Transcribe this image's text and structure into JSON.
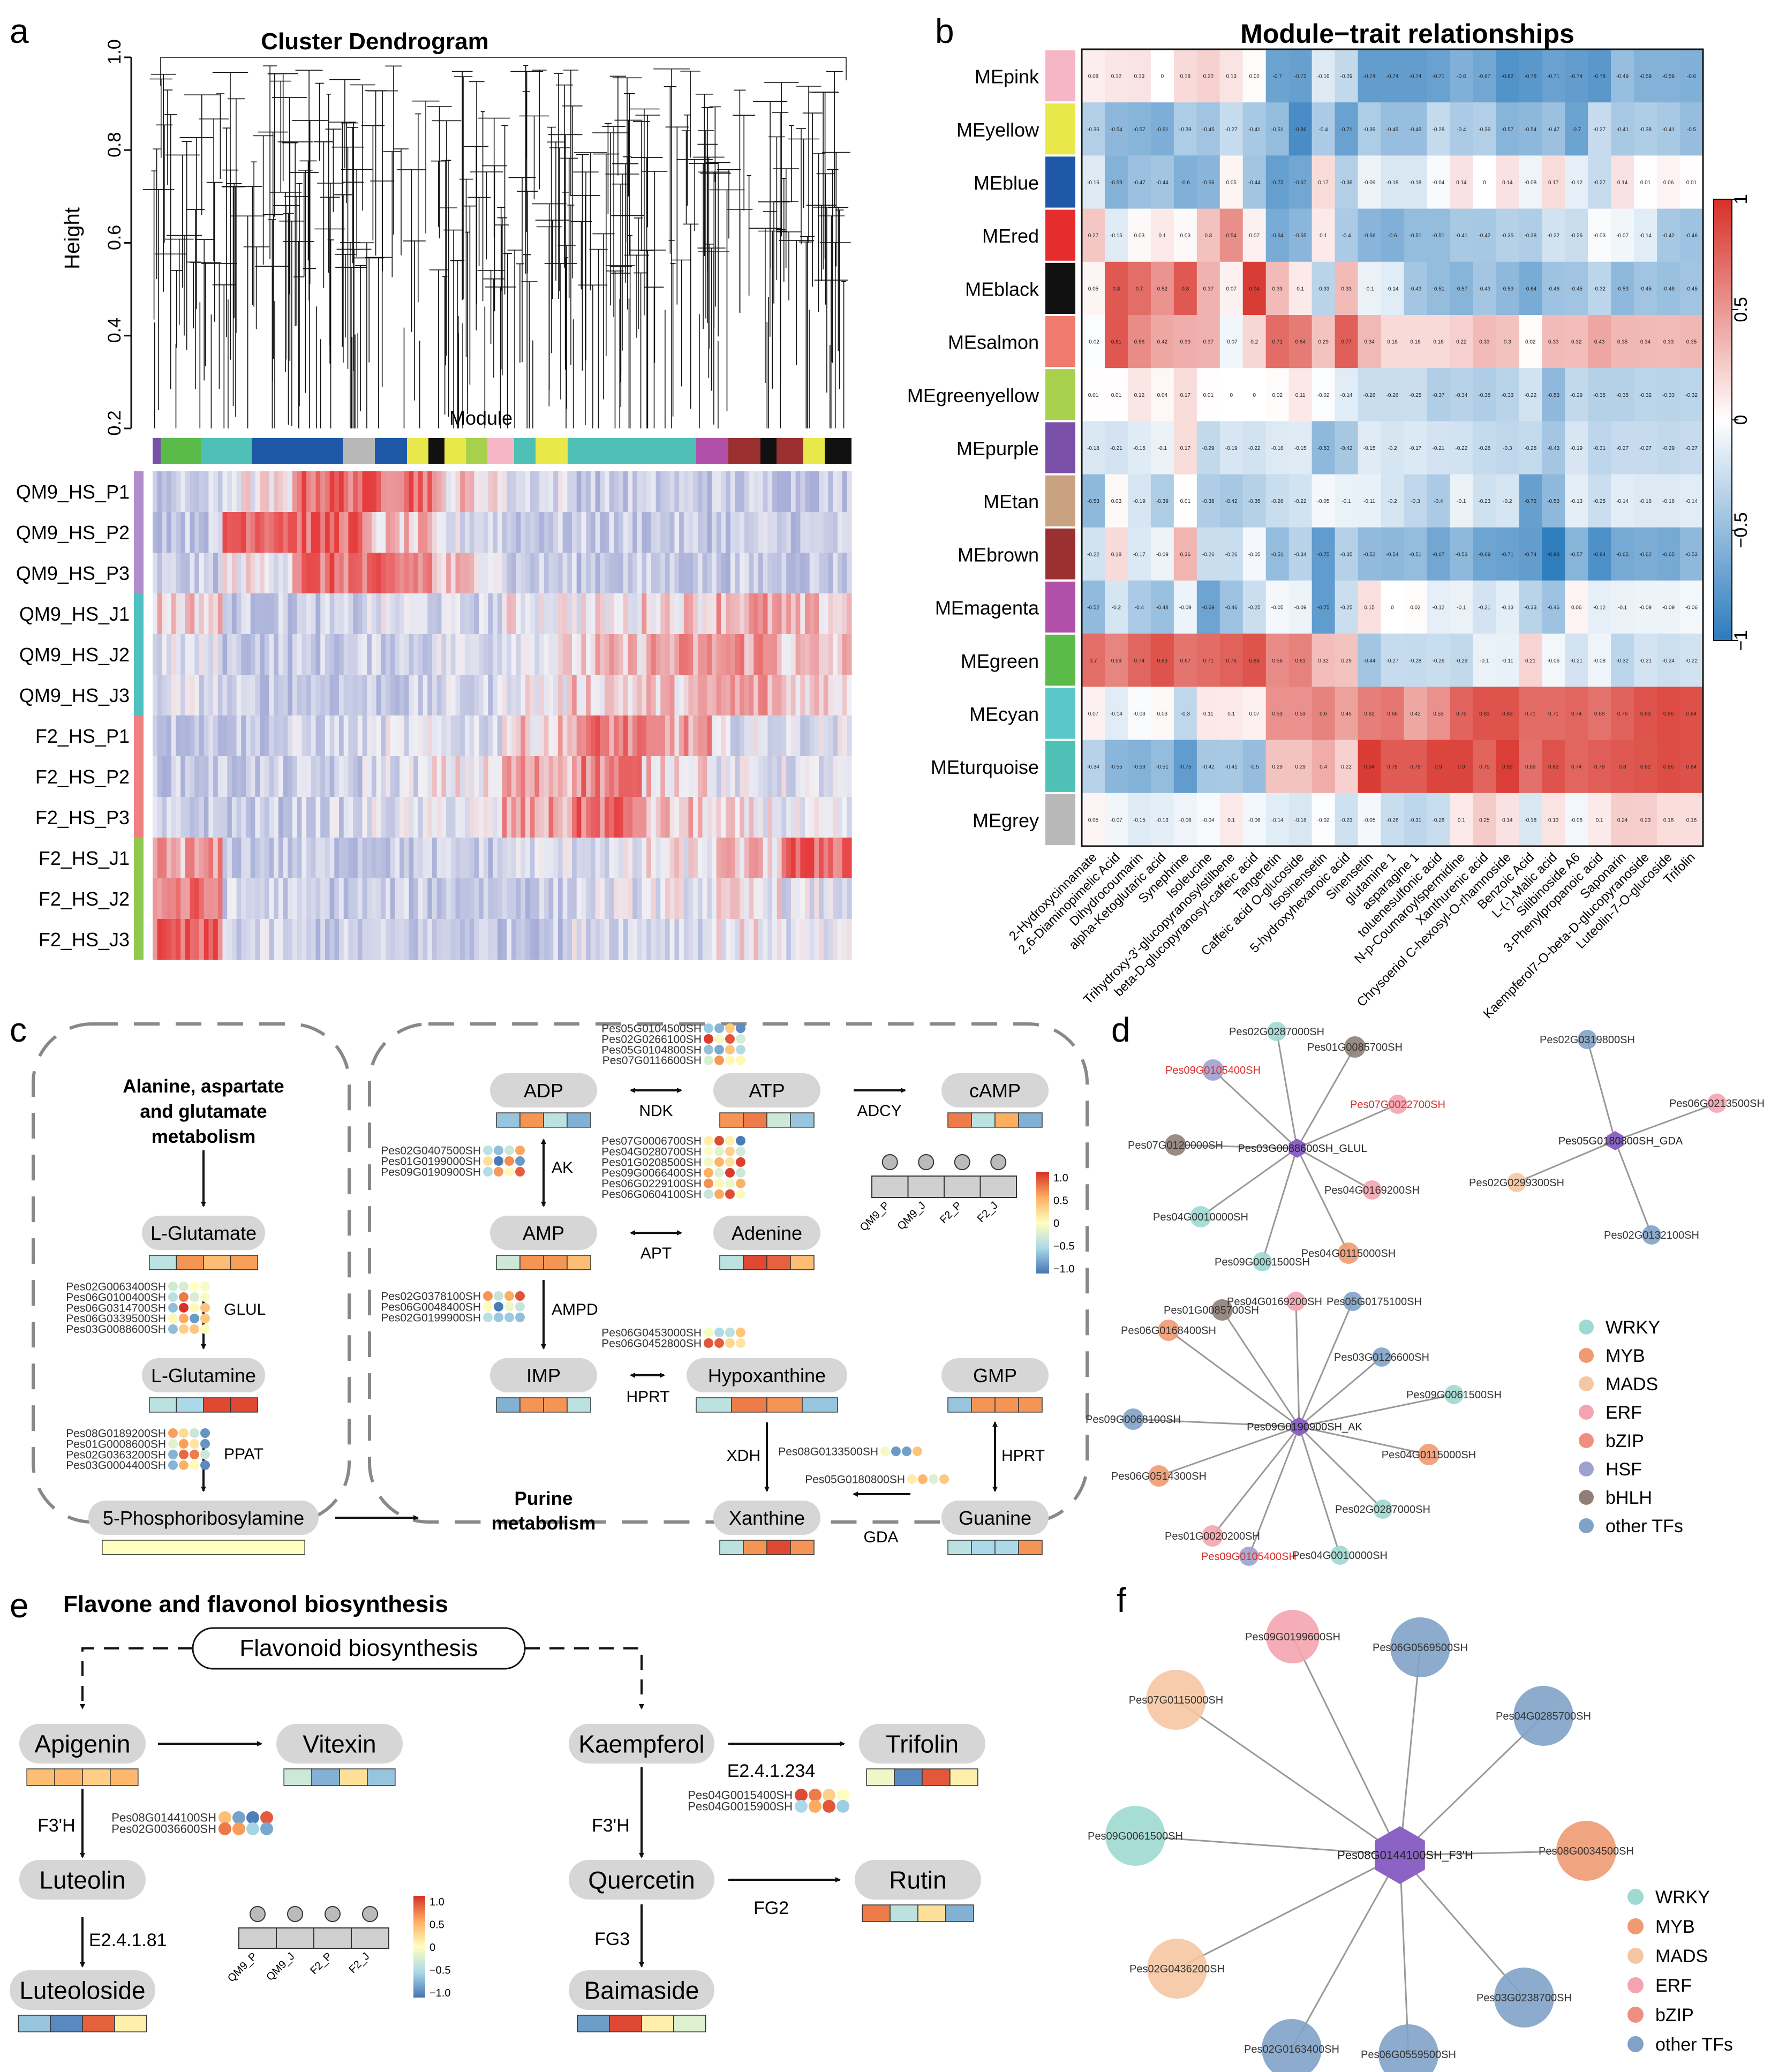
{
  "panels": {
    "a": {
      "label": "a",
      "title": "Cluster Dendrogram",
      "yaxis_label": "Height",
      "yticks": [
        "0.2",
        "0.4",
        "0.6",
        "0.8",
        "1.0"
      ],
      "module_label": "Module",
      "samples": [
        "QM9_HS_P1",
        "QM9_HS_P2",
        "QM9_HS_P3",
        "QM9_HS_J1",
        "QM9_HS_J2",
        "QM9_HS_J3",
        "F2_HS_P1",
        "F2_HS_P2",
        "F2_HS_P3",
        "F2_HS_J1",
        "F2_HS_J2",
        "F2_HS_J3"
      ],
      "sample_group_colors": [
        "#b28ccc",
        "#b28ccc",
        "#b28ccc",
        "#4ec0c0",
        "#4ec0c0",
        "#4ec0c0",
        "#f08080",
        "#f08080",
        "#f08080",
        "#8fca4e",
        "#8fca4e",
        "#8fca4e"
      ]
    },
    "b": {
      "label": "b",
      "title": "Module−trait relationships",
      "modules": [
        "MEpink",
        "MEyellow",
        "MEblue",
        "MEred",
        "MEblack",
        "MEsalmon",
        "MEgreenyellow",
        "MEpurple",
        "MEtan",
        "MEbrown",
        "MEmagenta",
        "MEgreen",
        "MEcyan",
        "MEturquoise",
        "MEgrey"
      ],
      "module_colors": [
        "#f7b6c5",
        "#e8e84a",
        "#2058a8",
        "#e62d2d",
        "#111111",
        "#f07a6e",
        "#a8d24e",
        "#7a4fa8",
        "#c9a282",
        "#9a3030",
        "#b050a8",
        "#5aba4a",
        "#5ac8c8",
        "#4ec0b6",
        "#b8b8b8"
      ],
      "traits": [
        "2-Hydroxycinnamate",
        "2,6-Diaminopimelic Acid",
        "Dihydrocoumarin",
        "alpha-Ketoglutaric acid",
        "Synephrine",
        "Isoleucine",
        "Trihydroxy-3'-glucopyranosylstilbene",
        "beta-D-glucopyranosyl-caffeic acid",
        "Tangeretin",
        "Caffeic acid O-glucoside",
        "Isosinensetin",
        "5-hydroxyhexanoic acid",
        "Sinensetin",
        "glutamine 1",
        "asparagine 1",
        "toluenesulfonic acid",
        "N-p-Coumaroylspermidine",
        "Xanthurenic acid",
        "Chrysoeriol C-hexosyl-O-rhamnoside",
        "Benzoic Acid",
        "L-(-)-Malic acid",
        "Silibinoside A6",
        "3-Phenylpropanoic acid",
        "Saponarin",
        "Kaempferol7-O-beta-D-glucopyranoside",
        "Luteolin-7-O-glucoside",
        "Trifolin"
      ],
      "colorbar_ticks": [
        "1",
        "0.5",
        "0",
        "−0.5",
        "−1"
      ],
      "matrix": [
        [
          0.08,
          0.12,
          0.13,
          0,
          0.18,
          0.22,
          0.13,
          0.02,
          -0.7,
          -0.72,
          -0.16,
          -0.29,
          -0.74,
          -0.74,
          -0.74,
          -0.71,
          -0.6,
          -0.67,
          -0.82,
          -0.78,
          -0.71,
          -0.74,
          -0.78,
          -0.49,
          -0.59,
          -0.59,
          -0.6
        ],
        [
          -0.36,
          -0.54,
          -0.57,
          -0.61,
          -0.39,
          -0.45,
          -0.27,
          -0.41,
          -0.51,
          -0.86,
          -0.4,
          -0.71,
          -0.39,
          -0.49,
          -0.49,
          -0.28,
          -0.4,
          -0.36,
          -0.57,
          -0.54,
          -0.47,
          -0.7,
          -0.27,
          -0.41,
          -0.38,
          -0.41,
          -0.5
        ],
        [
          -0.16,
          -0.59,
          -0.47,
          -0.44,
          -0.6,
          -0.56,
          0.05,
          -0.44,
          -0.73,
          -0.67,
          0.17,
          -0.36,
          -0.09,
          -0.18,
          -0.18,
          -0.04,
          0.14,
          0,
          0.14,
          -0.08,
          0.17,
          -0.12,
          -0.27,
          0.14,
          0.01,
          0.06,
          0.01
        ],
        [
          0.27,
          -0.15,
          0.03,
          0.1,
          0.03,
          0.3,
          0.54,
          0.07,
          -0.64,
          -0.55,
          0.1,
          -0.4,
          -0.56,
          -0.6,
          -0.51,
          -0.51,
          -0.41,
          -0.42,
          -0.35,
          -0.38,
          -0.22,
          -0.26,
          -0.03,
          -0.07,
          -0.14,
          -0.42,
          -0.46
        ],
        [
          0.05,
          0.8,
          0.7,
          0.52,
          0.8,
          0.37,
          0.07,
          0.94,
          0.33,
          0.1,
          -0.33,
          0.33,
          -0.1,
          -0.14,
          -0.43,
          -0.51,
          -0.57,
          -0.43,
          -0.53,
          -0.64,
          -0.46,
          -0.45,
          -0.32,
          -0.53,
          -0.45,
          -0.48,
          -0.45
        ],
        [
          -0.02,
          0.81,
          0.56,
          0.42,
          0.39,
          0.37,
          -0.07,
          0.2,
          0.71,
          0.64,
          0.29,
          0.77,
          0.34,
          0.18,
          0.18,
          0.18,
          0.22,
          0.33,
          0.3,
          0.02,
          0.33,
          0.32,
          0.43,
          0.35,
          0.34,
          0.33,
          0.35
        ],
        [
          0.01,
          0.01,
          0.12,
          0.04,
          0.17,
          0.01,
          0,
          0,
          0.02,
          0.11,
          -0.02,
          -0.14,
          -0.26,
          -0.26,
          -0.25,
          -0.37,
          -0.34,
          -0.38,
          -0.33,
          -0.22,
          -0.53,
          -0.29,
          -0.35,
          -0.35,
          -0.32,
          -0.33,
          -0.32
        ],
        [
          -0.18,
          -0.21,
          -0.15,
          -0.1,
          0.17,
          -0.29,
          -0.19,
          -0.22,
          -0.16,
          -0.15,
          -0.53,
          -0.42,
          -0.15,
          -0.2,
          -0.17,
          -0.21,
          -0.22,
          -0.28,
          -0.3,
          -0.28,
          -0.43,
          -0.19,
          -0.31,
          -0.27,
          -0.27,
          -0.29,
          -0.27
        ],
        [
          -0.53,
          0.03,
          -0.19,
          -0.39,
          0.01,
          -0.38,
          -0.42,
          -0.35,
          -0.26,
          -0.22,
          -0.05,
          -0.1,
          -0.11,
          -0.2,
          -0.3,
          -0.4,
          -0.1,
          -0.23,
          -0.2,
          -0.72,
          -0.53,
          -0.13,
          -0.25,
          -0.14,
          -0.16,
          -0.16,
          -0.14
        ],
        [
          -0.22,
          0.18,
          -0.17,
          -0.09,
          0.36,
          -0.26,
          -0.26,
          -0.05,
          -0.51,
          -0.34,
          -0.75,
          -0.35,
          -0.52,
          -0.54,
          -0.51,
          -0.67,
          -0.53,
          -0.69,
          -0.71,
          -0.74,
          -0.98,
          -0.57,
          -0.84,
          -0.65,
          -0.62,
          -0.65,
          -0.53
        ],
        [
          -0.52,
          -0.2,
          -0.4,
          -0.48,
          -0.09,
          -0.69,
          -0.46,
          -0.25,
          -0.05,
          -0.09,
          -0.75,
          -0.25,
          0.15,
          0,
          0.02,
          -0.12,
          -0.1,
          -0.21,
          -0.13,
          -0.33,
          -0.46,
          0.06,
          -0.12,
          -0.1,
          -0.09,
          -0.09,
          -0.06
        ],
        [
          0.7,
          0.59,
          0.74,
          0.83,
          0.67,
          0.71,
          0.76,
          0.83,
          0.56,
          0.61,
          0.32,
          0.29,
          -0.44,
          -0.27,
          -0.28,
          -0.26,
          -0.29,
          -0.1,
          -0.11,
          0.21,
          -0.06,
          -0.21,
          -0.08,
          -0.32,
          -0.21,
          -0.24,
          -0.22
        ],
        [
          0.07,
          -0.14,
          -0.03,
          0.03,
          -0.3,
          0.11,
          0.1,
          0.07,
          0.53,
          0.53,
          0.6,
          0.45,
          0.62,
          0.66,
          0.42,
          0.53,
          0.75,
          0.83,
          0.83,
          0.71,
          0.71,
          0.74,
          0.68,
          0.76,
          0.83,
          0.86,
          0.84
        ],
        [
          -0.34,
          -0.55,
          -0.59,
          -0.51,
          -0.75,
          -0.42,
          -0.41,
          -0.5,
          0.29,
          0.29,
          0.4,
          0.22,
          0.94,
          0.79,
          0.79,
          0.9,
          0.9,
          0.75,
          0.93,
          0.69,
          0.83,
          0.74,
          0.78,
          0.8,
          0.82,
          0.86,
          0.84
        ],
        [
          0.05,
          -0.07,
          -0.15,
          -0.13,
          -0.08,
          -0.04,
          0.1,
          -0.06,
          -0.14,
          -0.18,
          -0.02,
          -0.23,
          -0.05,
          -0.26,
          -0.31,
          -0.26,
          0.1,
          0.25,
          0.14,
          -0.18,
          0.13,
          -0.06,
          0.1,
          0.24,
          0.23,
          0.16,
          0.16
        ]
      ]
    },
    "c": {
      "label": "c",
      "alanine_title_lines": [
        "Alanine, aspartate",
        "and glutamate",
        "metabolism"
      ],
      "purine_title_lines": [
        "Purine",
        "metabolism"
      ],
      "metabolites": {
        "l_glutamate": "L-Glutamate",
        "l_glutamine": "L-Glutamine",
        "prpp_amine": "5-Phosphoribosylamine",
        "adp": "ADP",
        "atp": "ATP",
        "camp": "cAMP",
        "amp": "AMP",
        "adenine": "Adenine",
        "imp": "IMP",
        "hypoxanthine": "Hypoxanthine",
        "gmp": "GMP",
        "xanthine": "Xanthine",
        "guanine": "Guanine"
      },
      "enzymes": {
        "glul": "GLUL",
        "ppat": "PPAT",
        "ndk": "NDK",
        "adcy": "ADCY",
        "ak": "AK",
        "apt": "APT",
        "ampd": "AMPD",
        "hprt1": "HPRT",
        "xdh": "XDH",
        "hprt2": "HPRT",
        "gda": "GDA"
      },
      "gene_groups": {
        "glul": [
          "Pes02G0063400SH",
          "Pes06G0100400SH",
          "Pes06G0314700SH",
          "Pes06G0339500SH",
          "Pes03G0088600SH"
        ],
        "ppat": [
          "Pes08G0189200SH",
          "Pes01G0008600SH",
          "Pes02G0363200SH",
          "Pes03G0004400SH"
        ],
        "ndk": [
          "Pes05G0104500SH",
          "Pes02G0266100SH",
          "Pes05G0104800SH",
          "Pes07G0116600SH"
        ],
        "ak": [
          "Pes02G0407500SH",
          "Pes01G0199000SH",
          "Pes09G0190900SH"
        ],
        "apt": [
          "Pes07G0006700SH",
          "Pes04G0280700SH",
          "Pes01G0208500SH",
          "Pes09G0066400SH",
          "Pes06G0229100SH",
          "Pes06G0604100SH"
        ],
        "ampd": [
          "Pes02G0378100SH",
          "Pes06G0048400SH",
          "Pes02G0199900SH"
        ],
        "hprt": [
          "Pes06G0453000SH",
          "Pes06G0452800SH"
        ],
        "xdh": [
          "Pes08G0133500SH"
        ],
        "gda": [
          "Pes05G0180800SH"
        ]
      },
      "legend_samples": [
        "QM9_P",
        "QM9_J",
        "F2_P",
        "F2_J"
      ],
      "legend_ticks": [
        "1.0",
        "0.5",
        "0",
        "−0.5",
        "−1.0"
      ]
    },
    "d": {
      "label": "d",
      "hub1": "Pes03G0088600SH_GLUL",
      "hub2": "Pes05G0180800SH_GDA",
      "hub3": "Pes09G0190900SH_AK",
      "net1_nodes": [
        "Pes02G0287000SH",
        "Pes01G0085700SH",
        "Pes09G0105400SH",
        "Pes07G0022700SH",
        "Pes07G0120000SH",
        "Pes04G0169200SH",
        "Pes04G0010000SH",
        "Pes04G0115000SH",
        "Pes09G0061500SH"
      ],
      "net2_nodes": [
        "Pes02G0319800SH",
        "Pes06G0213500SH",
        "Pes02G0299300SH",
        "Pes02G0132100SH"
      ],
      "net3_nodes": [
        "Pes01G0085700SH",
        "Pes04G0169200SH",
        "Pes05G0175100SH",
        "Pes06G0168400SH",
        "Pes03G0126600SH",
        "Pes09G0061500SH",
        "Pes09G0068100SH",
        "Pes04G0115000SH",
        "Pes06G0514300SH",
        "Pes02G0287000SH",
        "Pes01G0020200SH",
        "Pes09G0105400SH",
        "Pes04G0010000SH"
      ],
      "legend": [
        "WRKY",
        "MYB",
        "MADS",
        "ERF",
        "bZIP",
        "HSF",
        "bHLH",
        "other TFs"
      ],
      "legend_colors": [
        "#9ed9d2",
        "#f09a72",
        "#f5c6a3",
        "#f4a4b0",
        "#ef8f7f",
        "#9da2cf",
        "#8f7f77",
        "#7fa2c8"
      ]
    },
    "e": {
      "label": "e",
      "title": "Flavone and flavonol biosynthesis",
      "source": "Flavonoid biosynthesis",
      "metabolites": {
        "apigenin": "Apigenin",
        "vitexin": "Vitexin",
        "luteolin": "Luteolin",
        "luteoloside": "Luteoloside",
        "kaempferol": "Kaempferol",
        "trifolin": "Trifolin",
        "quercetin": "Quercetin",
        "rutin": "Rutin",
        "baimaside": "Baimaside"
      },
      "enzymes": {
        "f3h_left": "F3'H",
        "e_lut": "E2.4.1.81",
        "f3h_right": "F3'H",
        "e_tri": "E2.4.1.234",
        "fg2": "FG2",
        "fg3": "FG3"
      },
      "gene_groups": {
        "f3h_left": [
          "Pes08G0144100SH",
          "Pes02G0036600SH"
        ],
        "f3h_right": [
          "Pes04G0015400SH",
          "Pes04G0015900SH"
        ]
      },
      "legend_samples": [
        "QM9_P",
        "QM9_J",
        "F2_P",
        "F2_J"
      ],
      "legend_ticks": [
        "1.0",
        "0.5",
        "0",
        "−0.5",
        "−1.0"
      ]
    },
    "f": {
      "label": "f",
      "hub": "Pes08G0144100SH_F3'H",
      "nodes": [
        "Pes09G0199600SH",
        "Pes06G0569500SH",
        "Pes07G0115000SH",
        "Pes04G0285700SH",
        "Pes09G0061500SH",
        "Pes08G0034500SH",
        "Pes02G0436200SH",
        "Pes03G0238700SH",
        "Pes02G0163400SH",
        "Pes06G0559500SH"
      ],
      "legend": [
        "WRKY",
        "MYB",
        "MADS",
        "ERF",
        "bZIP",
        "other TFs"
      ],
      "legend_colors": [
        "#9ed9d2",
        "#f09a72",
        "#f5c6a3",
        "#f4a4b0",
        "#ef8f7f",
        "#7fa2c8"
      ]
    }
  }
}
